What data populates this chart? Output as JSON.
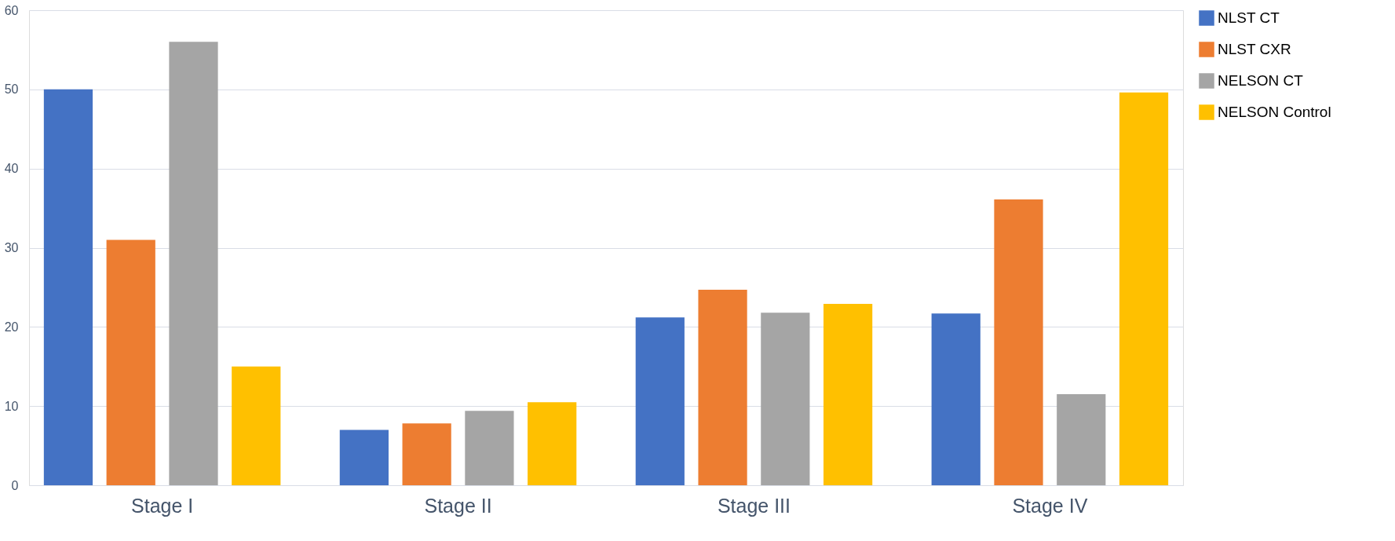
{
  "chart_data": {
    "type": "bar",
    "categories": [
      "Stage I",
      "Stage II",
      "Stage III",
      "Stage IV"
    ],
    "series": [
      {
        "name": "NLST CT",
        "color": "#4472c4",
        "values": [
          50,
          7.0,
          21.2,
          21.7
        ]
      },
      {
        "name": "NLST CXR",
        "color": "#ed7d31",
        "values": [
          31,
          7.8,
          24.7,
          36.1
        ]
      },
      {
        "name": "NELSON CT",
        "color": "#a5a5a5",
        "values": [
          56,
          9.4,
          21.8,
          11.5
        ]
      },
      {
        "name": "NELSON Control",
        "color": "#ffc000",
        "values": [
          15,
          10.5,
          22.9,
          49.6
        ]
      }
    ],
    "ylim": [
      0,
      60
    ],
    "yticks": [
      0,
      10,
      20,
      30,
      40,
      50,
      60
    ],
    "grid": "y",
    "legend": "right"
  }
}
